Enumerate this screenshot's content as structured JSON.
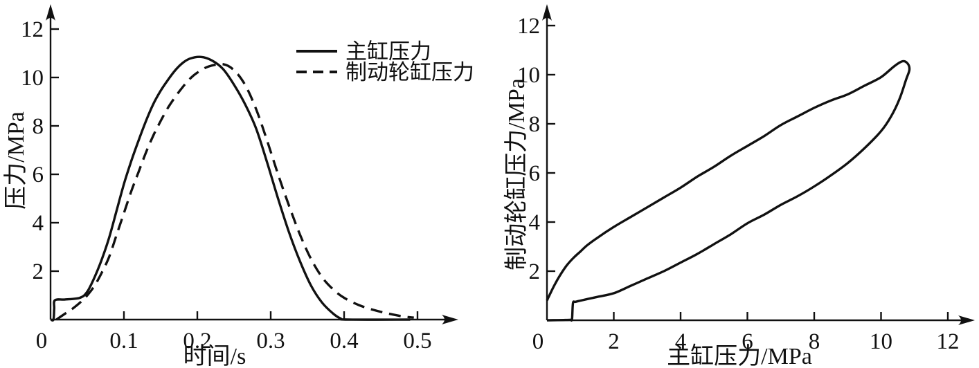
{
  "figure_title": "",
  "colors": {
    "line": "#111111",
    "background": "#ffffff"
  },
  "chart_data": [
    {
      "id": "time-pressure",
      "type": "line",
      "title": "",
      "xlabel": "时间/s",
      "ylabel": "压力/MPa",
      "xlim": [
        0,
        0.555
      ],
      "ylim": [
        0,
        13.0
      ],
      "grid": false,
      "xticks": [
        0,
        0.1,
        0.2,
        0.3,
        0.4,
        0.5
      ],
      "xtick_labels": [
        "0",
        "0.1",
        "0.2",
        "0.3",
        "0.4",
        "0.5"
      ],
      "yticks": [
        2,
        4,
        6,
        8,
        10,
        12
      ],
      "ytick_labels": [
        "2",
        "4",
        "6",
        "8",
        "10",
        "12"
      ],
      "legend": {
        "position": "top-right"
      },
      "series": [
        {
          "name": "主缸压力",
          "style": "solid",
          "points": [
            [
              0,
              0
            ],
            [
              0.004,
              0
            ],
            [
              0.005,
              0.45
            ],
            [
              0.006,
              0.8
            ],
            [
              0.02,
              0.83
            ],
            [
              0.04,
              0.9
            ],
            [
              0.05,
              1.15
            ],
            [
              0.06,
              1.75
            ],
            [
              0.07,
              2.5
            ],
            [
              0.08,
              3.4
            ],
            [
              0.09,
              4.5
            ],
            [
              0.1,
              5.6
            ],
            [
              0.11,
              6.55
            ],
            [
              0.12,
              7.4
            ],
            [
              0.13,
              8.2
            ],
            [
              0.14,
              8.9
            ],
            [
              0.15,
              9.45
            ],
            [
              0.16,
              9.9
            ],
            [
              0.17,
              10.3
            ],
            [
              0.18,
              10.6
            ],
            [
              0.19,
              10.78
            ],
            [
              0.205,
              10.85
            ],
            [
              0.22,
              10.7
            ],
            [
              0.235,
              10.35
            ],
            [
              0.25,
              9.7
            ],
            [
              0.265,
              8.9
            ],
            [
              0.28,
              7.9
            ],
            [
              0.295,
              6.5
            ],
            [
              0.31,
              5.0
            ],
            [
              0.325,
              3.6
            ],
            [
              0.34,
              2.4
            ],
            [
              0.355,
              1.4
            ],
            [
              0.37,
              0.7
            ],
            [
              0.385,
              0.25
            ],
            [
              0.395,
              0.05
            ],
            [
              0.405,
              0
            ],
            [
              0.49,
              0
            ]
          ]
        },
        {
          "name": "制动轮缸压力",
          "style": "dashed",
          "points": [
            [
              0.008,
              0
            ],
            [
              0.02,
              0.25
            ],
            [
              0.03,
              0.45
            ],
            [
              0.042,
              0.75
            ],
            [
              0.05,
              1.0
            ],
            [
              0.06,
              1.4
            ],
            [
              0.07,
              1.95
            ],
            [
              0.08,
              2.6
            ],
            [
              0.09,
              3.5
            ],
            [
              0.1,
              4.4
            ],
            [
              0.11,
              5.3
            ],
            [
              0.12,
              6.1
            ],
            [
              0.13,
              6.9
            ],
            [
              0.14,
              7.6
            ],
            [
              0.15,
              8.2
            ],
            [
              0.16,
              8.75
            ],
            [
              0.17,
              9.2
            ],
            [
              0.18,
              9.6
            ],
            [
              0.19,
              9.95
            ],
            [
              0.2,
              10.2
            ],
            [
              0.215,
              10.45
            ],
            [
              0.235,
              10.55
            ],
            [
              0.25,
              10.3
            ],
            [
              0.265,
              9.7
            ],
            [
              0.28,
              8.7
            ],
            [
              0.295,
              7.4
            ],
            [
              0.31,
              6.0
            ],
            [
              0.325,
              4.7
            ],
            [
              0.34,
              3.5
            ],
            [
              0.355,
              2.5
            ],
            [
              0.37,
              1.75
            ],
            [
              0.385,
              1.25
            ],
            [
              0.4,
              0.9
            ],
            [
              0.42,
              0.6
            ],
            [
              0.44,
              0.4
            ],
            [
              0.46,
              0.25
            ],
            [
              0.48,
              0.13
            ],
            [
              0.495,
              0.08
            ]
          ]
        }
      ]
    },
    {
      "id": "hysteresis-loop",
      "type": "line",
      "title": "",
      "xlabel": "主缸压力/MPa",
      "ylabel": "制动轮缸压力/MPa",
      "xlim": [
        0,
        12.8
      ],
      "ylim": [
        0,
        13.0
      ],
      "grid": false,
      "xticks": [
        0,
        2,
        4,
        6,
        8,
        10,
        12
      ],
      "xtick_labels": [
        "0",
        "2",
        "4",
        "6",
        "8",
        "10",
        "12"
      ],
      "yticks": [
        2,
        4,
        6,
        8,
        10,
        12
      ],
      "ytick_labels": [
        "2",
        "4",
        "6",
        "8",
        "10",
        "12"
      ],
      "series": [
        {
          "name": "",
          "style": "solid",
          "points": [
            [
              0,
              0
            ],
            [
              0.55,
              0.01
            ],
            [
              0.7,
              0.02
            ],
            [
              0.75,
              0.05
            ],
            [
              0.78,
              0.7
            ],
            [
              0.85,
              0.75
            ],
            [
              1,
              0.8
            ],
            [
              1.5,
              0.95
            ],
            [
              2,
              1.1
            ],
            [
              2.5,
              1.4
            ],
            [
              3,
              1.7
            ],
            [
              3.5,
              2.0
            ],
            [
              4,
              2.35
            ],
            [
              4.5,
              2.7
            ],
            [
              5,
              3.1
            ],
            [
              5.5,
              3.5
            ],
            [
              6,
              3.95
            ],
            [
              6.5,
              4.3
            ],
            [
              7,
              4.7
            ],
            [
              7.5,
              5.05
            ],
            [
              8,
              5.45
            ],
            [
              8.5,
              5.9
            ],
            [
              9,
              6.4
            ],
            [
              9.5,
              7.0
            ],
            [
              10,
              7.7
            ],
            [
              10.3,
              8.3
            ],
            [
              10.55,
              9.0
            ],
            [
              10.75,
              9.8
            ],
            [
              10.85,
              10.2
            ],
            [
              10.8,
              10.45
            ],
            [
              10.65,
              10.55
            ],
            [
              10.4,
              10.35
            ],
            [
              10,
              9.9
            ],
            [
              9.5,
              9.55
            ],
            [
              9,
              9.2
            ],
            [
              8.5,
              8.95
            ],
            [
              8,
              8.65
            ],
            [
              7.5,
              8.3
            ],
            [
              7,
              7.95
            ],
            [
              6.5,
              7.5
            ],
            [
              6,
              7.1
            ],
            [
              5.5,
              6.7
            ],
            [
              5,
              6.25
            ],
            [
              4.5,
              5.85
            ],
            [
              4,
              5.4
            ],
            [
              3.5,
              5.0
            ],
            [
              3,
              4.6
            ],
            [
              2.5,
              4.2
            ],
            [
              2,
              3.8
            ],
            [
              1.5,
              3.35
            ],
            [
              1.2,
              3.05
            ],
            [
              1,
              2.8
            ],
            [
              0.8,
              2.55
            ],
            [
              0.6,
              2.25
            ],
            [
              0.4,
              1.85
            ],
            [
              0.25,
              1.5
            ],
            [
              0.12,
              1.15
            ],
            [
              0.05,
              0.95
            ],
            [
              0,
              0.8
            ]
          ]
        }
      ]
    }
  ]
}
